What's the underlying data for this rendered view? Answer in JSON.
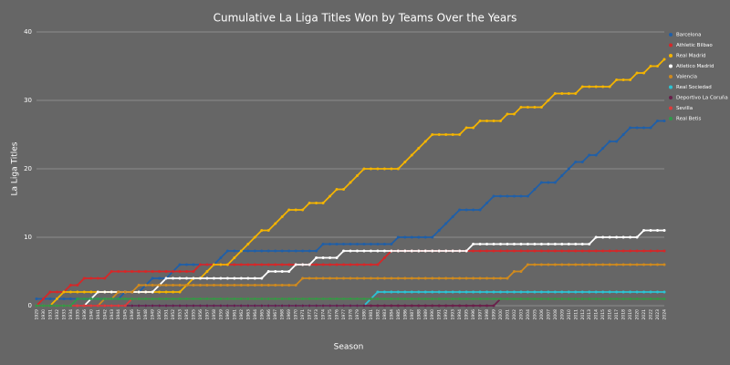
{
  "chart_data": {
    "type": "line",
    "title": "Cumulative La Liga Titles Won by Teams Over the Years",
    "x_label": "Season",
    "y_label": "La Liga Titles",
    "categories": [
      "1929",
      "1930",
      "1931",
      "1932",
      "1933",
      "1934",
      "1935",
      "1936",
      "1940",
      "1941",
      "1942",
      "1943",
      "1944",
      "1945",
      "1946",
      "1947",
      "1948",
      "1949",
      "1950",
      "1951",
      "1952",
      "1953",
      "1954",
      "1955",
      "1956",
      "1957",
      "1958",
      "1959",
      "1960",
      "1961",
      "1962",
      "1963",
      "1964",
      "1965",
      "1966",
      "1967",
      "1968",
      "1969",
      "1970",
      "1971",
      "1972",
      "1973",
      "1974",
      "1975",
      "1976",
      "1977",
      "1978",
      "1979",
      "1980",
      "1981",
      "1982",
      "1983",
      "1984",
      "1985",
      "1986",
      "1987",
      "1988",
      "1989",
      "1990",
      "1991",
      "1992",
      "1993",
      "1994",
      "1995",
      "1996",
      "1997",
      "1998",
      "1999",
      "2000",
      "2001",
      "2002",
      "2003",
      "2004",
      "2005",
      "2006",
      "2007",
      "2008",
      "2009",
      "2010",
      "2011",
      "2012",
      "2013",
      "2014",
      "2015",
      "2016",
      "2017",
      "2018",
      "2019",
      "2020",
      "2021",
      "2022",
      "2023",
      "2024"
    ],
    "ylim": [
      0,
      40
    ],
    "yticks": [
      0,
      10,
      20,
      30,
      40
    ],
    "grid": true,
    "legend": "upper right",
    "series": [
      {
        "name": "Barcelona",
        "color": "#1f5fa8",
        "values": [
          1,
          1,
          1,
          1,
          1,
          1,
          1,
          1,
          1,
          1,
          1,
          1,
          1,
          2,
          2,
          2,
          3,
          4,
          4,
          4,
          5,
          6,
          6,
          6,
          6,
          6,
          6,
          7,
          8,
          8,
          8,
          8,
          8,
          8,
          8,
          8,
          8,
          8,
          8,
          8,
          8,
          8,
          9,
          9,
          9,
          9,
          9,
          9,
          9,
          9,
          9,
          9,
          9,
          10,
          10,
          10,
          10,
          10,
          10,
          11,
          12,
          13,
          14,
          14,
          14,
          14,
          15,
          16,
          16,
          16,
          16,
          16,
          16,
          17,
          18,
          18,
          18,
          19,
          20,
          21,
          21,
          22,
          22,
          23,
          24,
          24,
          25,
          26,
          26,
          26,
          26,
          27,
          27
        ]
      },
      {
        "name": "Athletic Bilbao",
        "color": "#d62728",
        "values": [
          0,
          1,
          2,
          2,
          2,
          3,
          3,
          4,
          4,
          4,
          4,
          5,
          5,
          5,
          5,
          5,
          5,
          5,
          5,
          5,
          5,
          5,
          5,
          5,
          6,
          6,
          6,
          6,
          6,
          6,
          6,
          6,
          6,
          6,
          6,
          6,
          6,
          6,
          6,
          6,
          6,
          6,
          6,
          6,
          6,
          6,
          6,
          6,
          6,
          6,
          6,
          7,
          8,
          8,
          8,
          8,
          8,
          8,
          8,
          8,
          8,
          8,
          8,
          8,
          8,
          8,
          8,
          8,
          8,
          8,
          8,
          8,
          8,
          8,
          8,
          8,
          8,
          8,
          8,
          8,
          8,
          8,
          8,
          8,
          8,
          8,
          8,
          8,
          8,
          8,
          8,
          8,
          8
        ]
      },
      {
        "name": "Real Madrid",
        "color": "#f4b400",
        "values": [
          0,
          0,
          0,
          1,
          2,
          2,
          2,
          2,
          2,
          2,
          2,
          2,
          2,
          2,
          2,
          2,
          2,
          2,
          2,
          2,
          2,
          2,
          3,
          4,
          4,
          5,
          6,
          6,
          6,
          7,
          8,
          9,
          10,
          11,
          11,
          12,
          13,
          14,
          14,
          14,
          15,
          15,
          15,
          16,
          17,
          17,
          18,
          19,
          20,
          20,
          20,
          20,
          20,
          20,
          21,
          22,
          23,
          24,
          25,
          25,
          25,
          25,
          25,
          26,
          26,
          27,
          27,
          27,
          27,
          28,
          28,
          29,
          29,
          29,
          29,
          30,
          31,
          31,
          31,
          31,
          32,
          32,
          32,
          32,
          32,
          33,
          33,
          33,
          34,
          34,
          35,
          35,
          36
        ]
      },
      {
        "name": "Atletico Madrid",
        "color": "#ffffff",
        "values": [
          0,
          0,
          0,
          0,
          0,
          0,
          0,
          0,
          1,
          2,
          2,
          2,
          2,
          2,
          2,
          2,
          2,
          2,
          3,
          4,
          4,
          4,
          4,
          4,
          4,
          4,
          4,
          4,
          4,
          4,
          4,
          4,
          4,
          4,
          5,
          5,
          5,
          5,
          6,
          6,
          6,
          7,
          7,
          7,
          7,
          8,
          8,
          8,
          8,
          8,
          8,
          8,
          8,
          8,
          8,
          8,
          8,
          8,
          8,
          8,
          8,
          8,
          8,
          8,
          9,
          9,
          9,
          9,
          9,
          9,
          9,
          9,
          9,
          9,
          9,
          9,
          9,
          9,
          9,
          9,
          9,
          9,
          10,
          10,
          10,
          10,
          10,
          10,
          10,
          11,
          11,
          11,
          11
        ]
      },
      {
        "name": "Valencia",
        "color": "#d08a1e",
        "values": [
          0,
          0,
          0,
          0,
          0,
          0,
          0,
          0,
          0,
          0,
          1,
          1,
          2,
          2,
          2,
          3,
          3,
          3,
          3,
          3,
          3,
          3,
          3,
          3,
          3,
          3,
          3,
          3,
          3,
          3,
          3,
          3,
          3,
          3,
          3,
          3,
          3,
          3,
          3,
          4,
          4,
          4,
          4,
          4,
          4,
          4,
          4,
          4,
          4,
          4,
          4,
          4,
          4,
          4,
          4,
          4,
          4,
          4,
          4,
          4,
          4,
          4,
          4,
          4,
          4,
          4,
          4,
          4,
          4,
          4,
          5,
          5,
          6,
          6,
          6,
          6,
          6,
          6,
          6,
          6,
          6,
          6,
          6,
          6,
          6,
          6,
          6,
          6,
          6,
          6,
          6,
          6,
          6
        ]
      },
      {
        "name": "Real Sociedad",
        "color": "#2bc4d4",
        "values": [
          0,
          0,
          0,
          0,
          0,
          0,
          0,
          0,
          0,
          0,
          0,
          0,
          0,
          0,
          0,
          0,
          0,
          0,
          0,
          0,
          0,
          0,
          0,
          0,
          0,
          0,
          0,
          0,
          0,
          0,
          0,
          0,
          0,
          0,
          0,
          0,
          0,
          0,
          0,
          0,
          0,
          0,
          0,
          0,
          0,
          0,
          0,
          0,
          0,
          1,
          2,
          2,
          2,
          2,
          2,
          2,
          2,
          2,
          2,
          2,
          2,
          2,
          2,
          2,
          2,
          2,
          2,
          2,
          2,
          2,
          2,
          2,
          2,
          2,
          2,
          2,
          2,
          2,
          2,
          2,
          2,
          2,
          2,
          2,
          2,
          2,
          2,
          2,
          2,
          2,
          2,
          2,
          2
        ]
      },
      {
        "name": "Deportivo La Coruña",
        "color": "#6a1f4a",
        "values": [
          0,
          0,
          0,
          0,
          0,
          0,
          0,
          0,
          0,
          0,
          0,
          0,
          0,
          0,
          0,
          0,
          0,
          0,
          0,
          0,
          0,
          0,
          0,
          0,
          0,
          0,
          0,
          0,
          0,
          0,
          0,
          0,
          0,
          0,
          0,
          0,
          0,
          0,
          0,
          0,
          0,
          0,
          0,
          0,
          0,
          0,
          0,
          0,
          0,
          0,
          0,
          0,
          0,
          0,
          0,
          0,
          0,
          0,
          0,
          0,
          0,
          0,
          0,
          0,
          0,
          0,
          0,
          0,
          1,
          1,
          1,
          1,
          1,
          1,
          1,
          1,
          1,
          1,
          1,
          1,
          1,
          1,
          1,
          1,
          1,
          1,
          1,
          1,
          1,
          1,
          1,
          1,
          1
        ]
      },
      {
        "name": "Sevilla",
        "color": "#e03a3a",
        "values": [
          0,
          0,
          0,
          0,
          0,
          0,
          0,
          0,
          0,
          0,
          0,
          0,
          0,
          0,
          1,
          1,
          1,
          1,
          1,
          1,
          1,
          1,
          1,
          1,
          1,
          1,
          1,
          1,
          1,
          1,
          1,
          1,
          1,
          1,
          1,
          1,
          1,
          1,
          1,
          1,
          1,
          1,
          1,
          1,
          1,
          1,
          1,
          1,
          1,
          1,
          1,
          1,
          1,
          1,
          1,
          1,
          1,
          1,
          1,
          1,
          1,
          1,
          1,
          1,
          1,
          1,
          1,
          1,
          1,
          1,
          1,
          1,
          1,
          1,
          1,
          1,
          1,
          1,
          1,
          1,
          1,
          1,
          1,
          1,
          1,
          1,
          1,
          1,
          1,
          1,
          1,
          1,
          1
        ]
      },
      {
        "name": "Real Betis",
        "color": "#2e9a4a",
        "values": [
          0,
          0,
          0,
          0,
          0,
          0,
          1,
          1,
          1,
          1,
          1,
          1,
          1,
          1,
          1,
          1,
          1,
          1,
          1,
          1,
          1,
          1,
          1,
          1,
          1,
          1,
          1,
          1,
          1,
          1,
          1,
          1,
          1,
          1,
          1,
          1,
          1,
          1,
          1,
          1,
          1,
          1,
          1,
          1,
          1,
          1,
          1,
          1,
          1,
          1,
          1,
          1,
          1,
          1,
          1,
          1,
          1,
          1,
          1,
          1,
          1,
          1,
          1,
          1,
          1,
          1,
          1,
          1,
          1,
          1,
          1,
          1,
          1,
          1,
          1,
          1,
          1,
          1,
          1,
          1,
          1,
          1,
          1,
          1,
          1,
          1,
          1,
          1,
          1,
          1,
          1,
          1,
          1
        ]
      }
    ]
  }
}
